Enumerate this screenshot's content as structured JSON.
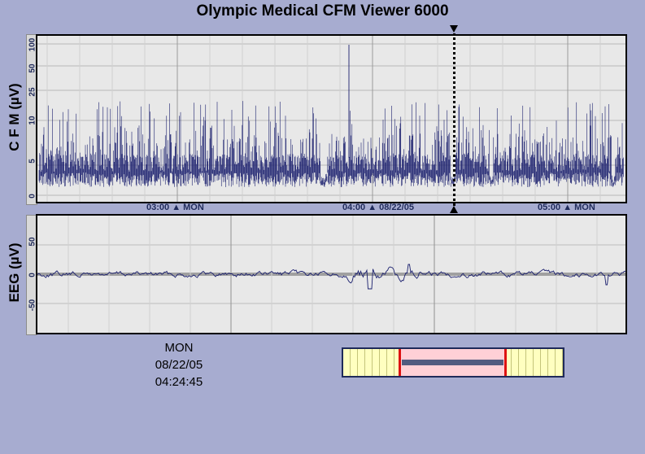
{
  "title": "Olympic Medical CFM Viewer 6000",
  "cfm": {
    "ylabel": "C F M (µV)",
    "ticks": [
      "100",
      "50",
      "25",
      "10",
      "5",
      "0"
    ],
    "x_labels": [
      "03:00",
      "MON",
      "04:00",
      "08/22/05",
      "05:00",
      "MON"
    ]
  },
  "eeg": {
    "ylabel": "EEG (µV)",
    "ticks": [
      "50",
      "0",
      "-50"
    ]
  },
  "cursor": {
    "day": "MON",
    "date": "08/22/05",
    "time": "04:24:45"
  },
  "overview": {
    "window_start": 0.25,
    "window_end": 0.745,
    "bar_start": 0.268,
    "bar_end": 0.73
  },
  "colors": {
    "background": "#a7acd0",
    "plot_bg": "#e8e8e8",
    "trace": "#1a1f6e",
    "overview_bg": "#ffffc0",
    "overview_window": "#ffd0d6",
    "overview_border": "#d11111"
  }
}
